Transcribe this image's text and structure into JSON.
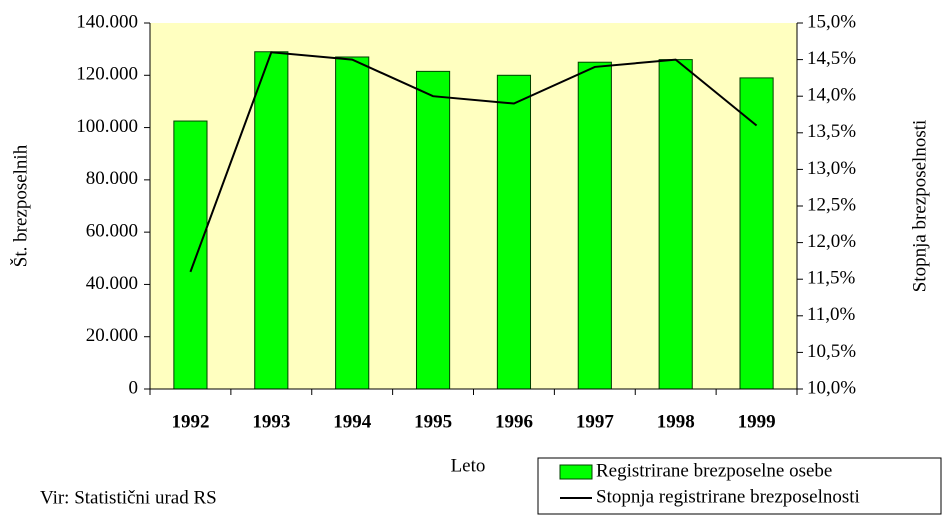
{
  "chart_data": {
    "type": "bar",
    "categories": [
      "1992",
      "1993",
      "1994",
      "1995",
      "1996",
      "1997",
      "1998",
      "1999"
    ],
    "x_label": "Leto",
    "y_label": "Št. brezposelnih",
    "y2_label": "Stopnja brezposelnosti",
    "source": "Vir: Statistični urad RS",
    "plot_background": "#ffffc0",
    "legend": "bottom-right",
    "series": [
      {
        "name": "Registrirane brezposelne osebe",
        "type": "bar",
        "color": "#00ff00",
        "values": [
          102500,
          129000,
          127000,
          121500,
          120000,
          125000,
          126000,
          119000
        ]
      },
      {
        "name": "Stopnja registrirane brezposelnosti",
        "type": "line",
        "axis": "y2",
        "color": "#000000",
        "values": [
          11.6,
          14.6,
          14.5,
          14.0,
          13.9,
          14.4,
          14.5,
          13.6
        ]
      }
    ],
    "ylim": [
      0,
      140000
    ],
    "yticks": [
      0,
      {
        "value": 20000,
        "label": "20.000"
      },
      {
        "value": 40000,
        "label": "40.000"
      },
      {
        "value": 60000,
        "label": "60.000"
      },
      {
        "value": 80000,
        "label": "80.000"
      },
      {
        "value": 100000,
        "label": "100.000"
      },
      {
        "value": 120000,
        "label": "120.000"
      },
      {
        "value": 140000,
        "label": "140.000"
      }
    ],
    "y2lim": [
      10,
      15
    ],
    "y2ticks": [
      {
        "value": 10,
        "label": "10,0%"
      },
      {
        "value": 10.5,
        "label": "10,5%"
      },
      {
        "value": 11,
        "label": "11,0%"
      },
      {
        "value": 11.5,
        "label": "11,5%"
      },
      {
        "value": 12,
        "label": "12,0%"
      },
      {
        "value": 12.5,
        "label": "12,5%"
      },
      {
        "value": 13,
        "label": "13,0%"
      },
      {
        "value": 13.5,
        "label": "13,5%"
      },
      {
        "value": 14,
        "label": "14,0%"
      },
      {
        "value": 14.5,
        "label": "14,5%"
      },
      {
        "value": 15,
        "label": "15,0%"
      }
    ]
  }
}
